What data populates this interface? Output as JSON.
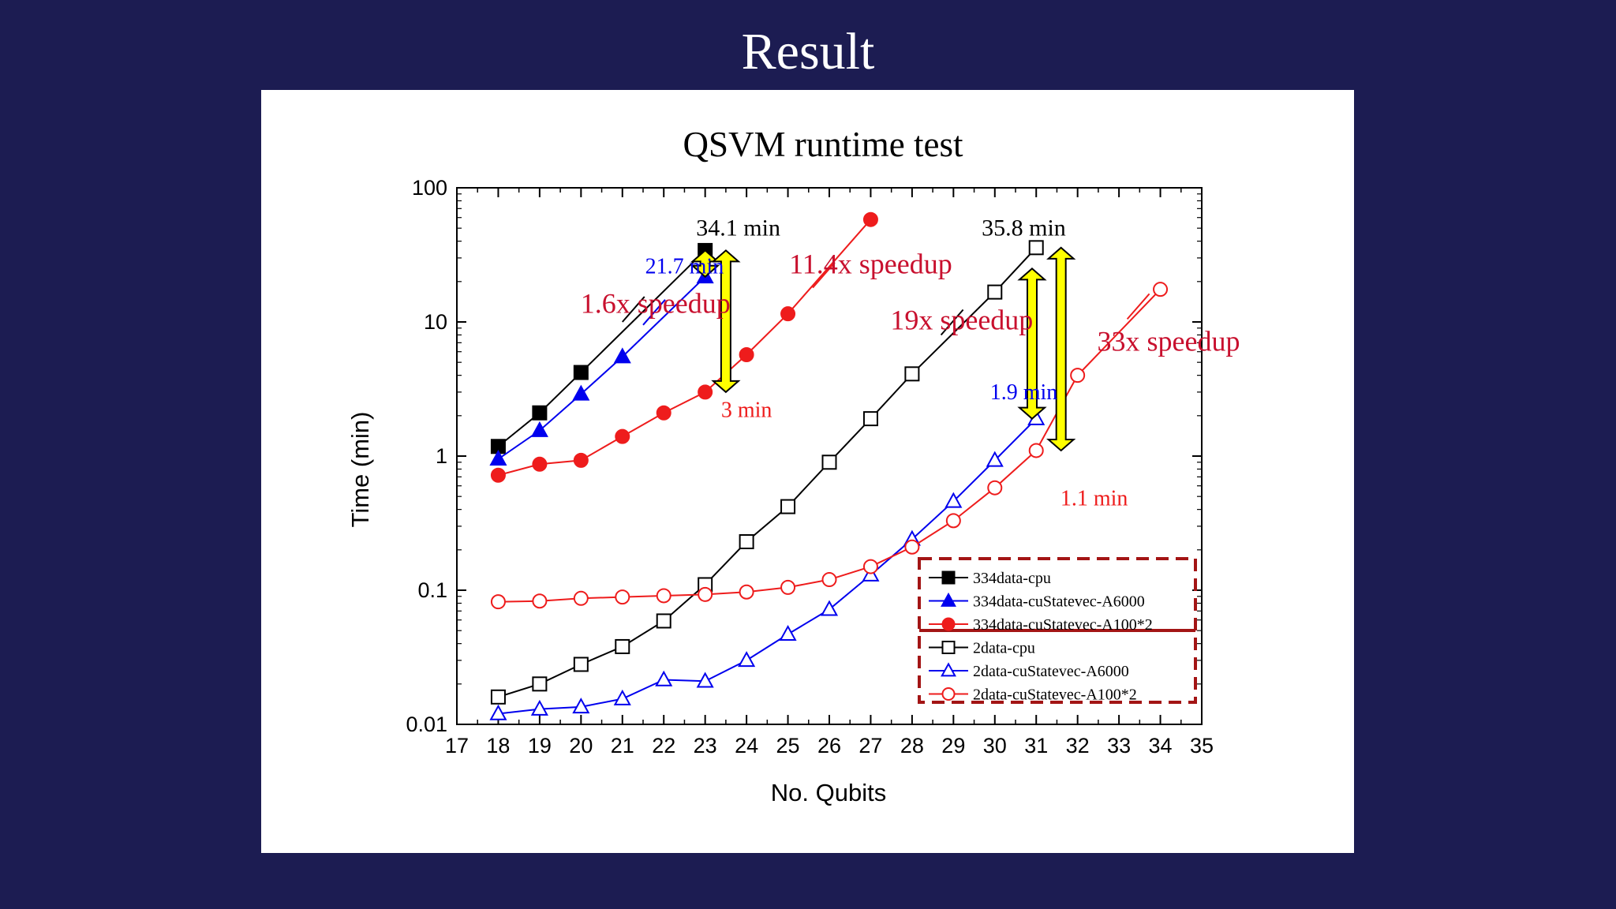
{
  "slide": {
    "title": "Result"
  },
  "colors": {
    "background": "#1c1c52",
    "black": "#000000",
    "blue": "#0000ee",
    "red": "#ee1c1c",
    "darkred": "#c8102e",
    "arrow_fill": "#ffff00",
    "legend_border": "#a31515"
  },
  "chart_data": {
    "type": "line",
    "title": "QSVM runtime test",
    "xlabel": "No. Qubits",
    "ylabel": "Time (min)",
    "xlim": [
      17,
      35
    ],
    "ylim": [
      0.01,
      100
    ],
    "yscale": "log",
    "x_ticks": [
      "17",
      "18",
      "19",
      "20",
      "21",
      "22",
      "23",
      "24",
      "25",
      "26",
      "27",
      "28",
      "29",
      "30",
      "31",
      "32",
      "33",
      "34",
      "35"
    ],
    "y_ticks": [
      {
        "value": 100,
        "label": "100"
      },
      {
        "value": 10,
        "label": "10"
      },
      {
        "value": 1,
        "label": "1"
      },
      {
        "value": 0.1,
        "label": "0.1"
      },
      {
        "value": 0.01,
        "label": "0.01"
      }
    ],
    "legend_position": "bottom-right",
    "series": [
      {
        "name": "334data-cpu",
        "color": "#000000",
        "marker": "square",
        "filled": true,
        "x": [
          18,
          19,
          20,
          23
        ],
        "y": [
          1.18,
          2.1,
          4.2,
          34.1
        ],
        "tail": [
          21,
          10
        ]
      },
      {
        "name": "334data-cuStatevec-A6000",
        "color": "#0000ee",
        "marker": "triangle",
        "filled": true,
        "x": [
          18,
          19,
          20,
          21,
          23
        ],
        "y": [
          0.95,
          1.55,
          2.9,
          5.5,
          21.7
        ],
        "tail": [
          21.5,
          9.5
        ]
      },
      {
        "name": "334data-cuStatevec-A100*2",
        "color": "#ee1c1c",
        "marker": "circle",
        "filled": true,
        "x": [
          18,
          19,
          20,
          21,
          22,
          23,
          24,
          25,
          27
        ],
        "y": [
          0.72,
          0.87,
          0.93,
          1.4,
          2.1,
          3.0,
          5.7,
          11.5,
          58
        ],
        "tail": [
          25.6,
          18
        ]
      },
      {
        "name": "2data-cpu",
        "color": "#000000",
        "marker": "square",
        "filled": false,
        "x": [
          18,
          19,
          20,
          21,
          22,
          23,
          24,
          25,
          26,
          27,
          28,
          30,
          31
        ],
        "y": [
          0.016,
          0.02,
          0.028,
          0.038,
          0.059,
          0.11,
          0.23,
          0.42,
          0.9,
          1.9,
          4.1,
          16.7,
          35.8
        ],
        "tail": [
          28.7,
          8
        ]
      },
      {
        "name": "2data-cuStatevec-A6000",
        "color": "#0000ee",
        "marker": "triangle",
        "filled": false,
        "x": [
          18,
          19,
          20,
          21,
          22,
          23,
          24,
          25,
          26,
          27,
          28,
          29,
          30,
          31
        ],
        "y": [
          0.012,
          0.013,
          0.0135,
          0.0155,
          0.0215,
          0.021,
          0.03,
          0.047,
          0.072,
          0.13,
          0.24,
          0.46,
          0.93,
          1.9
        ]
      },
      {
        "name": "2data-cuStatevec-A100*2",
        "color": "#ee1c1c",
        "marker": "circle",
        "filled": false,
        "x": [
          18,
          19,
          20,
          21,
          22,
          23,
          24,
          25,
          26,
          27,
          28,
          29,
          30,
          31,
          32,
          34
        ],
        "y": [
          0.082,
          0.083,
          0.087,
          0.089,
          0.091,
          0.093,
          0.097,
          0.105,
          0.12,
          0.15,
          0.21,
          0.33,
          0.58,
          1.1,
          4.0,
          17.5
        ],
        "tail": [
          33.2,
          10.5
        ]
      }
    ],
    "annotations": [
      {
        "text": "34.1 min",
        "color": "#000000",
        "x": 23.8,
        "y": 44,
        "size": 30
      },
      {
        "text": "21.7 min",
        "color": "#0000ee",
        "x": 22.5,
        "y": 23,
        "size": 28
      },
      {
        "text": "1.6x speedup",
        "color": "#c8102e",
        "x": 21.8,
        "y": 11.7,
        "size": 36
      },
      {
        "text": "11.4x speedup",
        "color": "#c8102e",
        "x": 27.0,
        "y": 23,
        "size": 36
      },
      {
        "text": "3 min",
        "color": "#ee1c1c",
        "x": 24.0,
        "y": 1.95,
        "size": 28
      },
      {
        "text": "35.8 min",
        "color": "#000000",
        "x": 30.7,
        "y": 44,
        "size": 30
      },
      {
        "text": "19x speedup",
        "color": "#c8102e",
        "x": 29.2,
        "y": 8.8,
        "size": 36
      },
      {
        "text": "33x speedup",
        "color": "#c8102e",
        "x": 34.2,
        "y": 6.1,
        "size": 36
      },
      {
        "text": "1.9 min",
        "color": "#0000ee",
        "x": 30.7,
        "y": 2.65,
        "size": 28
      },
      {
        "text": "1.1 min",
        "color": "#ee1c1c",
        "x": 32.4,
        "y": 0.43,
        "size": 28
      }
    ],
    "speedup_arrows": [
      {
        "x": 23.0,
        "y_top": 34.1,
        "y_bottom": 21.7
      },
      {
        "x": 23.5,
        "y_top": 34.1,
        "y_bottom": 3.0
      },
      {
        "x": 30.9,
        "y_top": 25.0,
        "y_bottom": 1.9
      },
      {
        "x": 31.6,
        "y_top": 35.8,
        "y_bottom": 1.1
      }
    ]
  }
}
